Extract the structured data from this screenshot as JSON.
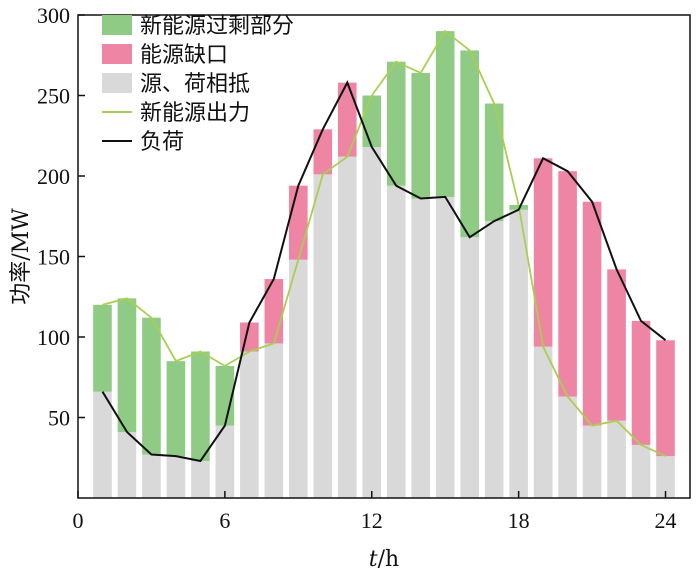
{
  "chart_data": {
    "type": "bar",
    "xlabel_var": "t",
    "xlabel_unit": "/h",
    "ylabel": "功率/MW",
    "xlim": [
      0,
      25
    ],
    "ylim": [
      0,
      300
    ],
    "xticks": [
      0,
      6,
      12,
      18,
      24
    ],
    "yticks": [
      50,
      100,
      150,
      200,
      250,
      300
    ],
    "x": [
      1,
      2,
      3,
      4,
      5,
      6,
      7,
      8,
      9,
      10,
      11,
      12,
      13,
      14,
      15,
      16,
      17,
      18,
      19,
      20,
      21,
      22,
      23,
      24
    ],
    "series": [
      {
        "name": "新能源过剩部分",
        "color": "#8fcb85",
        "values": [
          120,
          124,
          112,
          85,
          91,
          82,
          0,
          0,
          0,
          0,
          0,
          250,
          271,
          264,
          290,
          278,
          245,
          182,
          0,
          0,
          0,
          0,
          0,
          0
        ]
      },
      {
        "name": "能源缺口",
        "color": "#ef85a4",
        "values": [
          0,
          0,
          0,
          0,
          0,
          0,
          109,
          136,
          194,
          229,
          258,
          0,
          0,
          0,
          0,
          0,
          0,
          0,
          211,
          203,
          184,
          142,
          110,
          98
        ]
      },
      {
        "name": "源、荷相抵",
        "color": "#d9d9d9",
        "values": [
          66,
          41,
          27,
          26,
          23,
          45,
          91,
          96,
          148,
          201,
          212,
          218,
          194,
          186,
          187,
          162,
          172,
          179,
          94,
          63,
          45,
          48,
          33,
          26
        ]
      },
      {
        "name": "新能源出力",
        "color": "#a8cf50",
        "values": [
          120,
          124,
          112,
          85,
          91,
          82,
          91,
          96,
          148,
          201,
          212,
          250,
          271,
          264,
          290,
          278,
          245,
          182,
          94,
          63,
          45,
          48,
          33,
          26
        ]
      },
      {
        "name": "负荷",
        "color": "#111111",
        "values": [
          66,
          41,
          27,
          26,
          23,
          45,
          109,
          136,
          194,
          229,
          258,
          218,
          194,
          186,
          187,
          162,
          172,
          179,
          211,
          203,
          184,
          142,
          110,
          98
        ]
      }
    ]
  }
}
